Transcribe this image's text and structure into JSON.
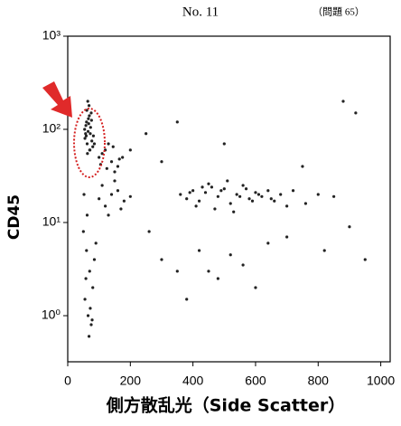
{
  "header": {
    "number": "No.  11",
    "question": "（問題 65）"
  },
  "chart_data": {
    "type": "scatter",
    "x_label": "側方散乱光（Side Scatter）",
    "y_label": "CD45",
    "color": "#222222",
    "log_y": true,
    "xlim": [
      0,
      1030
    ],
    "ylim": [
      0.32,
      1000
    ],
    "xticks": [
      0,
      200,
      400,
      600,
      800,
      1000
    ],
    "yticks": [
      {
        "value": 1,
        "label": "10⁰"
      },
      {
        "value": 10,
        "label": "10¹"
      },
      {
        "value": 100,
        "label": "10²"
      },
      {
        "value": 1000,
        "label": "10³"
      }
    ],
    "x": [
      55,
      60,
      65,
      70,
      75,
      62,
      58,
      68,
      72,
      80,
      66,
      54,
      77,
      63,
      69,
      59,
      73,
      85,
      61,
      67,
      71,
      64,
      57,
      76,
      82,
      100,
      120,
      140,
      160,
      130,
      110,
      150,
      175,
      125,
      145,
      105,
      165,
      360,
      380,
      400,
      420,
      440,
      460,
      480,
      500,
      520,
      540,
      560,
      580,
      600,
      620,
      640,
      660,
      680,
      700,
      450,
      470,
      490,
      510,
      530,
      550,
      430,
      410,
      390,
      570,
      590,
      610,
      650,
      720,
      760,
      800,
      850,
      50,
      60,
      70,
      80,
      55,
      65,
      75,
      85,
      90,
      62,
      58,
      72,
      68,
      78,
      52,
      100,
      120,
      140,
      110,
      130,
      160,
      180,
      200,
      150,
      170,
      300,
      350,
      420,
      480,
      520,
      560,
      600,
      640,
      260,
      380,
      450,
      700,
      820,
      900,
      950,
      200,
      250,
      300,
      500,
      750,
      880,
      920,
      350
    ],
    "y": [
      80,
      120,
      95,
      60,
      150,
      70,
      110,
      180,
      90,
      65,
      130,
      100,
      75,
      55,
      140,
      85,
      105,
      70,
      160,
      115,
      60,
      200,
      90,
      125,
      85,
      50,
      60,
      45,
      40,
      70,
      55,
      35,
      50,
      38,
      65,
      42,
      48,
      20,
      18,
      22,
      17,
      21,
      24,
      19,
      23,
      16,
      20,
      25,
      18,
      21,
      19,
      22,
      17,
      20,
      15,
      26,
      14,
      22,
      28,
      13,
      19,
      24,
      15,
      21,
      23,
      17,
      20,
      18,
      22,
      16,
      20,
      19,
      8,
      5,
      3,
      2,
      1.5,
      1,
      0.8,
      4,
      6,
      12,
      2.5,
      1.2,
      0.6,
      0.9,
      20,
      18,
      15,
      20,
      25,
      12,
      22,
      17,
      19,
      28,
      14,
      4,
      3,
      5,
      2.5,
      4.5,
      3.5,
      2,
      6,
      8,
      1.5,
      3,
      7,
      5,
      9,
      4,
      60,
      90,
      45,
      70,
      40,
      200,
      150,
      120
    ]
  }
}
